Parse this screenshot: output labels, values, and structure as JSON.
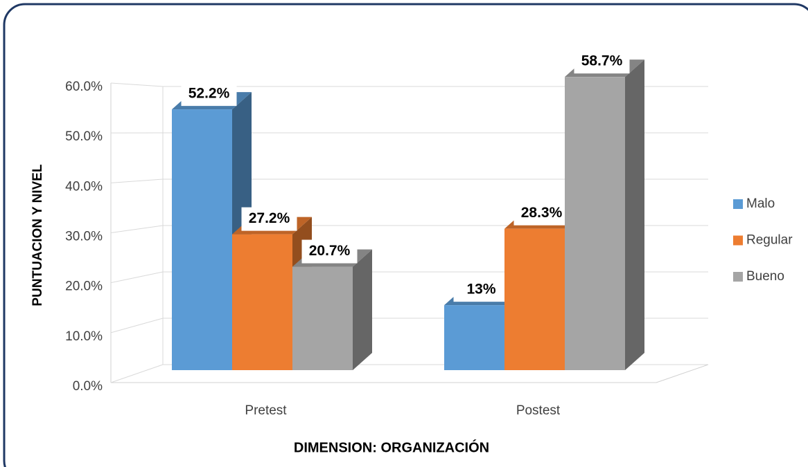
{
  "chart_data": {
    "type": "bar3d",
    "x_label": "DIMENSION: ORGANIZACIÓN",
    "y_label": "PUNTUACION Y NIVEL",
    "categories": [
      "Pretest",
      "Postest"
    ],
    "series": [
      {
        "name": "Malo",
        "color": "#5b9bd5",
        "values": [
          52.2,
          13
        ],
        "value_labels": [
          "52.2%",
          "13%"
        ]
      },
      {
        "name": "Regular",
        "color": "#ed7d31",
        "values": [
          27.2,
          28.3
        ],
        "value_labels": [
          "27.2%",
          "28.3%"
        ]
      },
      {
        "name": "Bueno",
        "color": "#a5a5a5",
        "values": [
          20.7,
          58.7
        ],
        "value_labels": [
          "20.7%",
          "58.7%"
        ]
      }
    ],
    "ylim": [
      0,
      60
    ],
    "yticks": [
      {
        "value": 0,
        "label": "0.0%"
      },
      {
        "value": 10,
        "label": "10.0%"
      },
      {
        "value": 20,
        "label": "20.0%"
      },
      {
        "value": 30,
        "label": "30.0%"
      },
      {
        "value": 40,
        "label": "40.0%"
      },
      {
        "value": 50,
        "label": "50.0%"
      },
      {
        "value": 60,
        "label": "60.0%"
      }
    ],
    "grid": true,
    "legend": "right"
  }
}
